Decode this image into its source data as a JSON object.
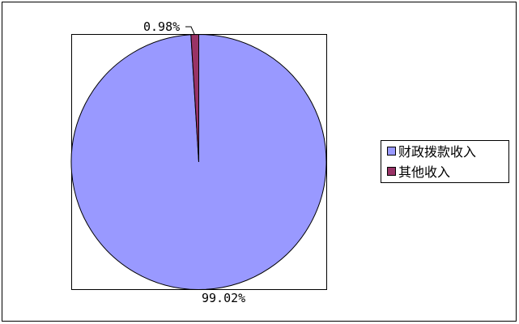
{
  "chart_data": {
    "type": "pie",
    "categories": [
      "财政拨款收入",
      "其他收入"
    ],
    "values": [
      99.02,
      0.98
    ],
    "data_labels": [
      "99.02%",
      "0.98%"
    ],
    "colors": [
      "#9999FF",
      "#993366"
    ],
    "start_angle": "top, clockwise",
    "legend": {
      "placement": "right",
      "entries": [
        "财政拨款收入",
        "其他收入"
      ]
    }
  }
}
